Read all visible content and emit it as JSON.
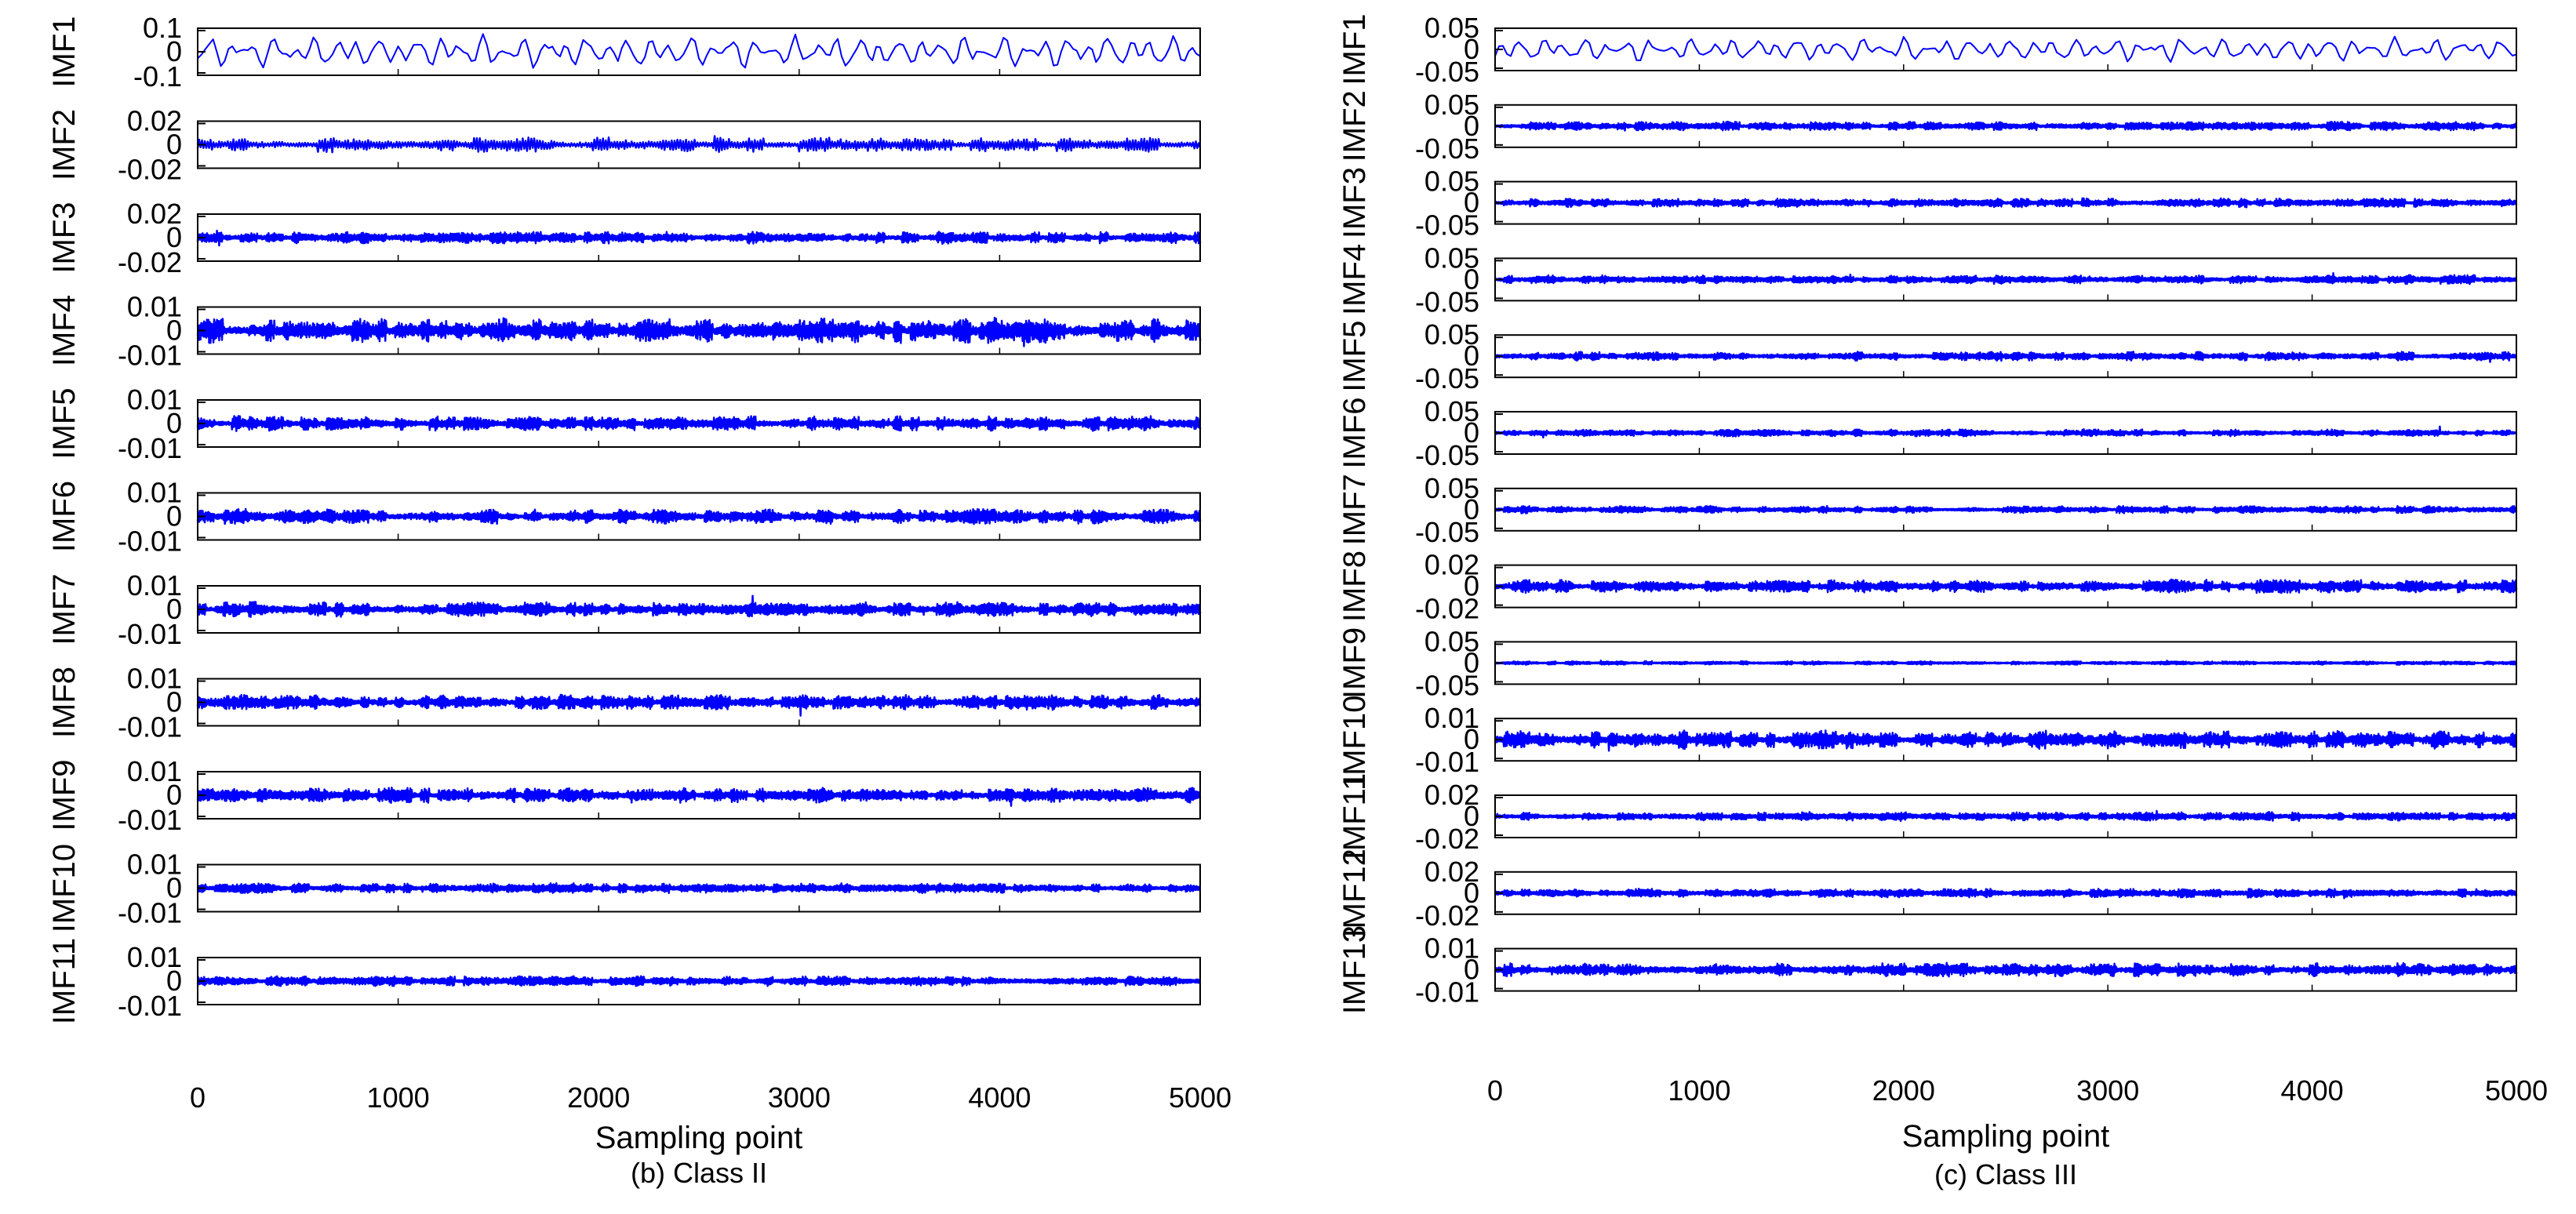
{
  "chart_data": [
    {
      "type": "line",
      "title": "(b) Class II",
      "xlabel": "Sampling point",
      "xlim": [
        0,
        5000
      ],
      "xticks": [
        "0",
        "1000",
        "2000",
        "3000",
        "4000",
        "5000"
      ],
      "line_color": "#0000ff",
      "panels": [
        {
          "label": "IMF1",
          "yticks": [
            "0.1",
            "0",
            "-0.1"
          ],
          "ylim": [
            -0.1,
            0.1
          ],
          "amplitude": 0.06,
          "kind": "smooth"
        },
        {
          "label": "IMF2",
          "yticks": [
            "0.02",
            "0",
            "-0.02"
          ],
          "ylim": [
            -0.02,
            0.02
          ],
          "amplitude": 0.006,
          "kind": "wave"
        },
        {
          "label": "IMF3",
          "yticks": [
            "0.02",
            "0",
            "-0.02"
          ],
          "ylim": [
            -0.02,
            0.02
          ],
          "amplitude": 0.005,
          "kind": "dense"
        },
        {
          "label": "IMF4",
          "yticks": [
            "0.01",
            "0",
            "-0.01"
          ],
          "ylim": [
            -0.01,
            0.01
          ],
          "amplitude": 0.005,
          "kind": "dense"
        },
        {
          "label": "IMF5",
          "yticks": [
            "0.01",
            "0",
            "-0.01"
          ],
          "ylim": [
            -0.01,
            0.01
          ],
          "amplitude": 0.003,
          "kind": "dense"
        },
        {
          "label": "IMF6",
          "yticks": [
            "0.01",
            "0",
            "-0.01"
          ],
          "ylim": [
            -0.01,
            0.01
          ],
          "amplitude": 0.003,
          "kind": "dense"
        },
        {
          "label": "IMF7",
          "yticks": [
            "0.01",
            "0",
            "-0.01"
          ],
          "ylim": [
            -0.01,
            0.01
          ],
          "amplitude": 0.003,
          "kind": "dense"
        },
        {
          "label": "IMF8",
          "yticks": [
            "0.01",
            "0",
            "-0.01"
          ],
          "ylim": [
            -0.01,
            0.01
          ],
          "amplitude": 0.003,
          "kind": "dense"
        },
        {
          "label": "IMF9",
          "yticks": [
            "0.01",
            "0",
            "-0.01"
          ],
          "ylim": [
            -0.01,
            0.01
          ],
          "amplitude": 0.003,
          "kind": "dense"
        },
        {
          "label": "IMF10",
          "yticks": [
            "0.01",
            "0",
            "-0.01"
          ],
          "ylim": [
            -0.01,
            0.01
          ],
          "amplitude": 0.002,
          "kind": "dense"
        },
        {
          "label": "IMF11",
          "yticks": [
            "0.01",
            "0",
            "-0.01"
          ],
          "ylim": [
            -0.01,
            0.01
          ],
          "amplitude": 0.002,
          "kind": "dense"
        }
      ]
    },
    {
      "type": "line",
      "title": "(c) Class III",
      "xlabel": "Sampling point",
      "xlim": [
        0,
        5000
      ],
      "xticks": [
        "0",
        "1000",
        "2000",
        "3000",
        "4000",
        "5000"
      ],
      "line_color": "#0000ff",
      "panels": [
        {
          "label": "IMF1",
          "yticks": [
            "0.05",
            "0",
            "-0.05"
          ],
          "ylim": [
            -0.05,
            0.05
          ],
          "amplitude": 0.025,
          "kind": "smooth"
        },
        {
          "label": "IMF2",
          "yticks": [
            "0.05",
            "0",
            "-0.05"
          ],
          "ylim": [
            -0.05,
            0.05
          ],
          "amplitude": 0.01,
          "kind": "dense"
        },
        {
          "label": "IMF3",
          "yticks": [
            "0.05",
            "0",
            "-0.05"
          ],
          "ylim": [
            -0.05,
            0.05
          ],
          "amplitude": 0.01,
          "kind": "dense"
        },
        {
          "label": "IMF4",
          "yticks": [
            "0.05",
            "0",
            "-0.05"
          ],
          "ylim": [
            -0.05,
            0.05
          ],
          "amplitude": 0.01,
          "kind": "dense"
        },
        {
          "label": "IMF5",
          "yticks": [
            "0.05",
            "0",
            "-0.05"
          ],
          "ylim": [
            -0.05,
            0.05
          ],
          "amplitude": 0.01,
          "kind": "dense"
        },
        {
          "label": "IMF6",
          "yticks": [
            "0.05",
            "0",
            "-0.05"
          ],
          "ylim": [
            -0.05,
            0.05
          ],
          "amplitude": 0.008,
          "kind": "dense"
        },
        {
          "label": "IMF7",
          "yticks": [
            "0.05",
            "0",
            "-0.05"
          ],
          "ylim": [
            -0.05,
            0.05
          ],
          "amplitude": 0.008,
          "kind": "dense"
        },
        {
          "label": "IMF8",
          "yticks": [
            "0.02",
            "0",
            "-0.02"
          ],
          "ylim": [
            -0.02,
            0.02
          ],
          "amplitude": 0.006,
          "kind": "dense"
        },
        {
          "label": "IMF9",
          "yticks": [
            "0.05",
            "0",
            "-0.05"
          ],
          "ylim": [
            -0.05,
            0.05
          ],
          "amplitude": 0.004,
          "kind": "dense"
        },
        {
          "label": "IMF10",
          "yticks": [
            "0.01",
            "0",
            "-0.01"
          ],
          "ylim": [
            -0.01,
            0.01
          ],
          "amplitude": 0.004,
          "kind": "dense"
        },
        {
          "label": "IMF11",
          "yticks": [
            "0.02",
            "0",
            "-0.02"
          ],
          "ylim": [
            -0.02,
            0.02
          ],
          "amplitude": 0.004,
          "kind": "dense"
        },
        {
          "label": "IMF12",
          "yticks": [
            "0.02",
            "0",
            "-0.02"
          ],
          "ylim": [
            -0.02,
            0.02
          ],
          "amplitude": 0.004,
          "kind": "dense"
        },
        {
          "label": "IMF13",
          "yticks": [
            "0.01",
            "0",
            "-0.01"
          ],
          "ylim": [
            -0.01,
            0.01
          ],
          "amplitude": 0.003,
          "kind": "dense"
        }
      ]
    }
  ]
}
